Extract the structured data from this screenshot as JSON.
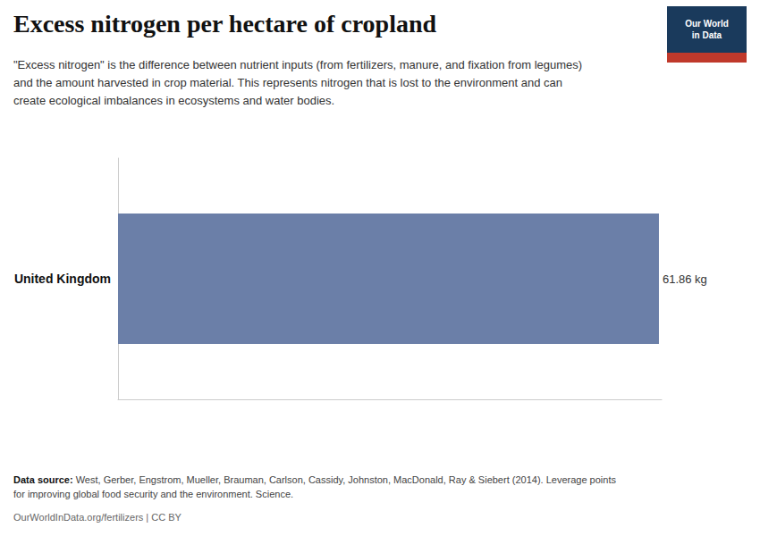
{
  "chart_data": {
    "type": "bar",
    "orientation": "horizontal",
    "title": "Excess nitrogen per hectare of cropland",
    "subtitle": "\"Excess nitrogen\" is the difference between nutrient inputs (from fertilizers, manure, and fixation from legumes)\nand the amount harvested in crop material. This represents nitrogen that is lost to the environment and can\ncreate ecological imbalances in ecosystems and water bodies.",
    "categories": [
      "United Kingdom"
    ],
    "values": [
      61.86
    ],
    "value_labels": [
      "61.86 kg"
    ],
    "data_labels": true,
    "color": "#6b7fa8",
    "xlim": [
      0,
      62.1693
    ],
    "tick_labels": "y",
    "grid": false,
    "annotations": [
      "Our World\nin Data"
    ],
    "source": {
      "label": "Data source:",
      "text": " West, Gerber, Engstrom, Mueller, Brauman, Carlson, Cassidy, Johnston, MacDonald, Ray & Siebert (2014). Leverage points\nfor improving global food security and the environment. Science."
    },
    "credit": "OurWorldInData.org/fertilizers | CC BY"
  }
}
